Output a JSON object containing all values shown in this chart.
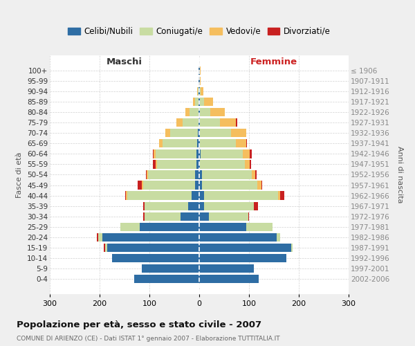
{
  "age_groups": [
    "100+",
    "95-99",
    "90-94",
    "85-89",
    "80-84",
    "75-79",
    "70-74",
    "65-69",
    "60-64",
    "55-59",
    "50-54",
    "45-49",
    "40-44",
    "35-39",
    "30-34",
    "25-29",
    "20-24",
    "15-19",
    "10-14",
    "5-9",
    "0-4"
  ],
  "birth_years": [
    "≤ 1906",
    "1907-1911",
    "1912-1916",
    "1917-1921",
    "1922-1926",
    "1927-1931",
    "1932-1936",
    "1937-1941",
    "1942-1946",
    "1947-1951",
    "1952-1956",
    "1957-1961",
    "1962-1966",
    "1967-1971",
    "1972-1976",
    "1977-1981",
    "1982-1986",
    "1987-1991",
    "1992-1996",
    "1997-2001",
    "2002-2006"
  ],
  "colors": {
    "celibe": "#2e6da4",
    "coniugato": "#c8dca2",
    "vedovo": "#f5be5e",
    "divorziato": "#c82020"
  },
  "maschi": {
    "celibe": [
      1,
      1,
      1,
      2,
      2,
      2,
      3,
      4,
      5,
      5,
      8,
      8,
      15,
      22,
      38,
      120,
      195,
      185,
      175,
      115,
      130
    ],
    "coniugato": [
      0,
      0,
      2,
      6,
      18,
      32,
      55,
      70,
      82,
      80,
      95,
      105,
      130,
      88,
      72,
      38,
      8,
      4,
      0,
      0,
      0
    ],
    "vedovo": [
      0,
      0,
      1,
      4,
      8,
      12,
      10,
      6,
      4,
      3,
      2,
      2,
      2,
      0,
      0,
      0,
      0,
      0,
      0,
      0,
      0
    ],
    "divorziato": [
      0,
      0,
      0,
      0,
      0,
      0,
      0,
      0,
      2,
      5,
      2,
      8,
      2,
      2,
      2,
      0,
      2,
      2,
      0,
      0,
      0
    ]
  },
  "femmine": {
    "nubile": [
      1,
      1,
      1,
      2,
      2,
      2,
      2,
      2,
      3,
      2,
      5,
      5,
      10,
      10,
      20,
      95,
      155,
      185,
      175,
      110,
      120
    ],
    "coniugata": [
      0,
      0,
      2,
      8,
      20,
      40,
      62,
      72,
      85,
      90,
      100,
      112,
      148,
      100,
      78,
      52,
      8,
      3,
      0,
      0,
      0
    ],
    "vedova": [
      2,
      2,
      6,
      18,
      30,
      32,
      30,
      20,
      14,
      10,
      8,
      8,
      5,
      0,
      0,
      0,
      0,
      0,
      0,
      0,
      0
    ],
    "divorziata": [
      0,
      0,
      0,
      0,
      0,
      2,
      0,
      2,
      3,
      2,
      2,
      2,
      8,
      8,
      2,
      0,
      0,
      0,
      0,
      0,
      0
    ]
  },
  "title": "Popolazione per età, sesso e stato civile - 2007",
  "subtitle": "COMUNE DI ARIENZO (CE) - Dati ISTAT 1° gennaio 2007 - Elaborazione TUTTITALIA.IT",
  "xlabel_left": "Maschi",
  "xlabel_right": "Femmine",
  "ylabel_left": "Fasce di età",
  "ylabel_right": "Anni di nascita",
  "xlim": 300,
  "legend_labels": [
    "Celibi/Nubili",
    "Coniugati/e",
    "Vedovi/e",
    "Divorziati/e"
  ],
  "bg_color": "#efefef",
  "plot_bg": "#ffffff"
}
